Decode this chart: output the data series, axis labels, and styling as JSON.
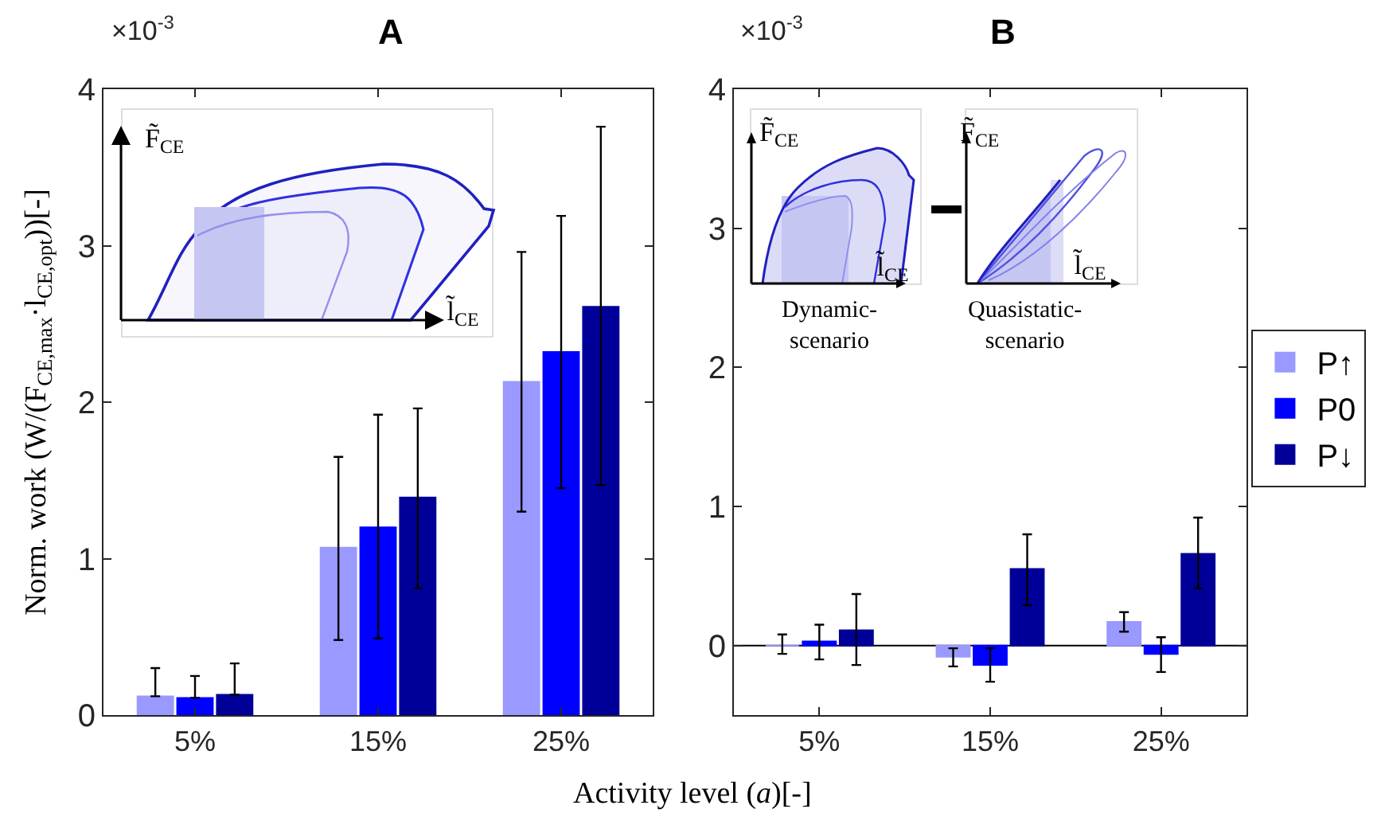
{
  "chart_data": [
    {
      "type": "bar",
      "title": "A",
      "xlabel": "Activity level (a)[-]",
      "ylabel": "Norm. work (W/(F$_{CE,max}$·l$_{CE,opt}$))[-]",
      "annotations": [
        "×10$^{-3}$",
        "F̃$_{CE}$",
        "l̃$_{CE}$"
      ],
      "categories": [
        "5%",
        "15%",
        "25%"
      ],
      "series": [
        {
          "color": "#9999ff",
          "values": [
            0.12,
            1.07,
            2.13
          ],
          "errors": [
            [
              0.12,
              0.3
            ],
            [
              0.48,
              1.65
            ],
            [
              1.3,
              2.96
            ]
          ]
        },
        {
          "color": "#0000ff",
          "values": [
            0.11,
            1.2,
            2.32
          ],
          "errors": [
            [
              0.11,
              0.25
            ],
            [
              0.49,
              1.92
            ],
            [
              1.45,
              3.19
            ]
          ]
        },
        {
          "color": "#000099",
          "values": [
            0.13,
            1.39,
            2.61
          ],
          "errors": [
            [
              0.13,
              0.33
            ],
            [
              0.81,
              1.96
            ],
            [
              1.47,
              3.76
            ]
          ]
        }
      ],
      "ylim": [
        0,
        4
      ],
      "yticks": [
        0,
        1,
        2,
        3,
        4
      ],
      "grid": false,
      "legend": false
    },
    {
      "type": "bar",
      "title": "B",
      "annotations": [
        "×10$^{-3}$",
        "F̃$_{CE}$",
        "l̃$_{CE}$",
        "Dynamic-scenario",
        "F̃$_{CE}$",
        "l̃$_{CE}$",
        "Quasistatic-scenario"
      ],
      "categories": [
        "5%",
        "15%",
        "25%"
      ],
      "series": [
        {
          "name": "P↑",
          "color": "#9999ff",
          "values": [
            0.0,
            -0.08,
            0.17
          ],
          "errors": [
            [
              -0.06,
              0.08
            ],
            [
              -0.15,
              -0.02
            ],
            [
              0.1,
              0.24
            ]
          ]
        },
        {
          "name": "P0",
          "color": "#0000ff",
          "values": [
            0.03,
            -0.14,
            -0.06
          ],
          "errors": [
            [
              -0.1,
              0.15
            ],
            [
              -0.26,
              -0.02
            ],
            [
              -0.19,
              0.06
            ]
          ]
        },
        {
          "name": "P↓",
          "color": "#000099",
          "values": [
            0.11,
            0.55,
            0.66
          ],
          "errors": [
            [
              -0.14,
              0.37
            ],
            [
              0.29,
              0.8
            ],
            [
              0.41,
              0.92
            ]
          ]
        }
      ],
      "ref_lines": [
        {
          "axis": "y",
          "value": 0,
          "color": "#000000"
        }
      ],
      "ylim": [
        -0.5,
        4
      ],
      "yticks": [
        0,
        1,
        2,
        3,
        4
      ],
      "grid": false,
      "legend": "right"
    }
  ]
}
